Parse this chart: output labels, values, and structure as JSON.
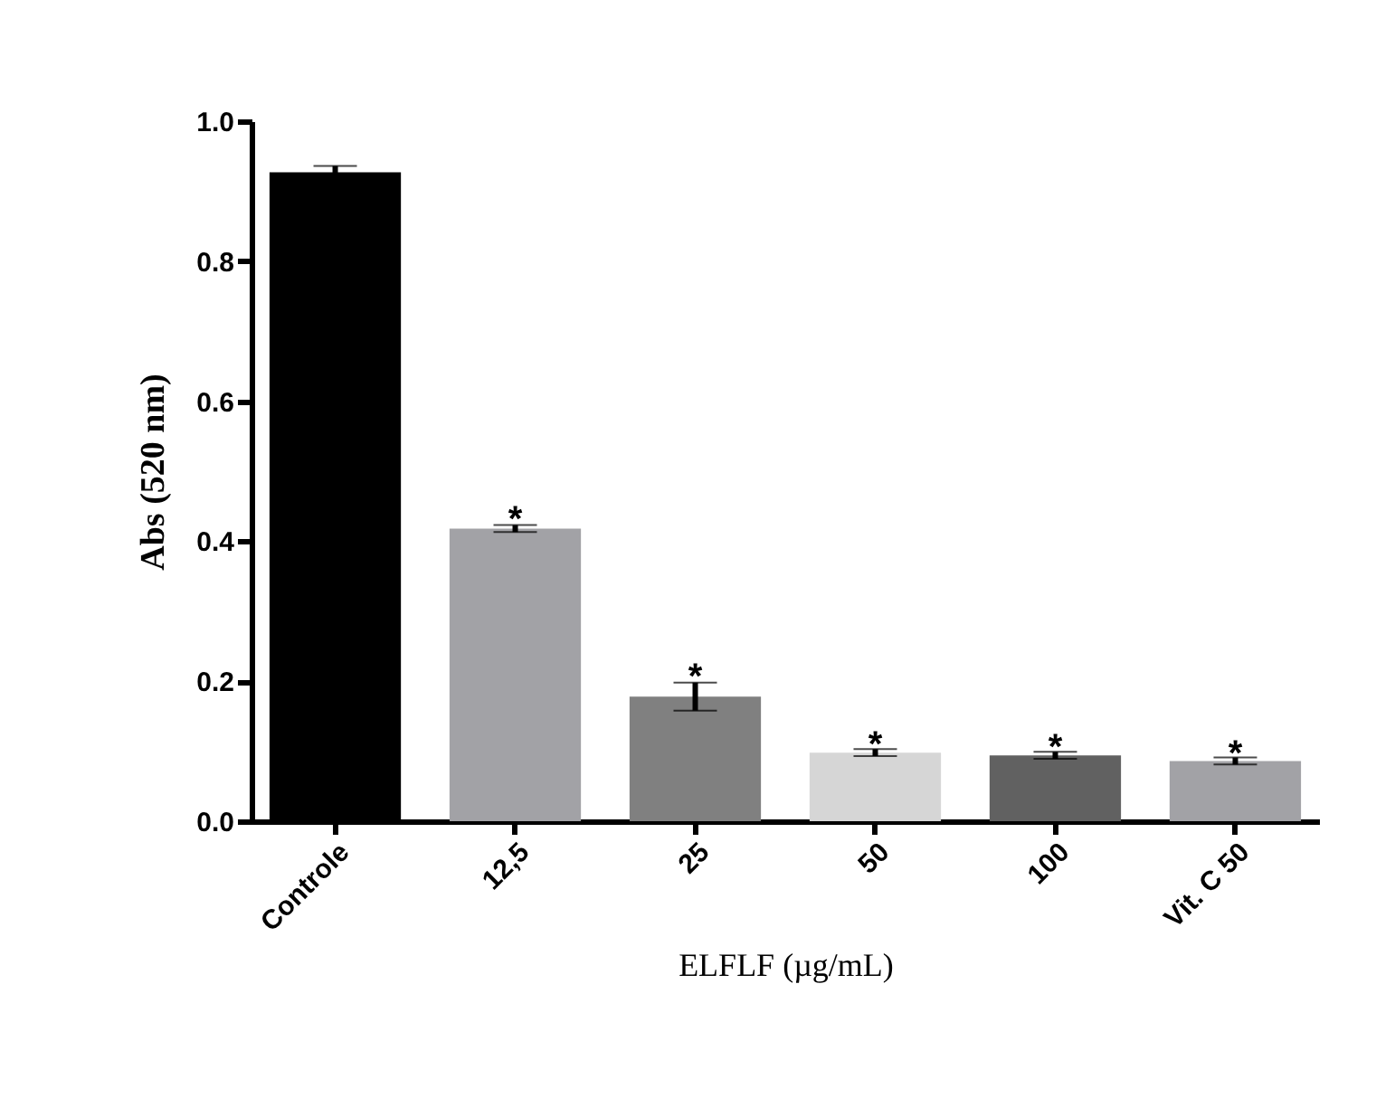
{
  "chart_data": {
    "type": "bar",
    "xlabel": "ELFLF (µg/mL)",
    "ylabel": "Abs (520 nm)",
    "categories": [
      "Controle",
      "12,5",
      "25",
      "50",
      "100",
      "Vit. C 50"
    ],
    "values": [
      0.927,
      0.418,
      0.178,
      0.098,
      0.094,
      0.086
    ],
    "errors": [
      0.009,
      0.005,
      0.02,
      0.005,
      0.005,
      0.005
    ],
    "colors": [
      "#000000",
      "#a2a2a6",
      "#808080",
      "#d6d6d6",
      "#616161",
      "#a2a2a6"
    ],
    "ylim": [
      0,
      1.0
    ],
    "yticks": [
      {
        "value": 0,
        "label": "0.0"
      },
      {
        "value": 0.2,
        "label": "0.2"
      },
      {
        "value": 0.4,
        "label": "0.4"
      },
      {
        "value": 0.6,
        "label": "0.6"
      },
      {
        "value": 0.8,
        "label": "0.8"
      },
      {
        "value": 1.0,
        "label": "1.0"
      }
    ],
    "annotations": [
      {
        "text": "*",
        "x": "12,5",
        "y": 0.425
      },
      {
        "text": "*",
        "x": "25",
        "y": 0.2
      },
      {
        "text": "*",
        "x": "50",
        "y": 0.103
      },
      {
        "text": "*",
        "x": "100",
        "y": 0.099
      },
      {
        "text": "*",
        "x": "Vit. C 50",
        "y": 0.091
      }
    ],
    "grid": false
  }
}
